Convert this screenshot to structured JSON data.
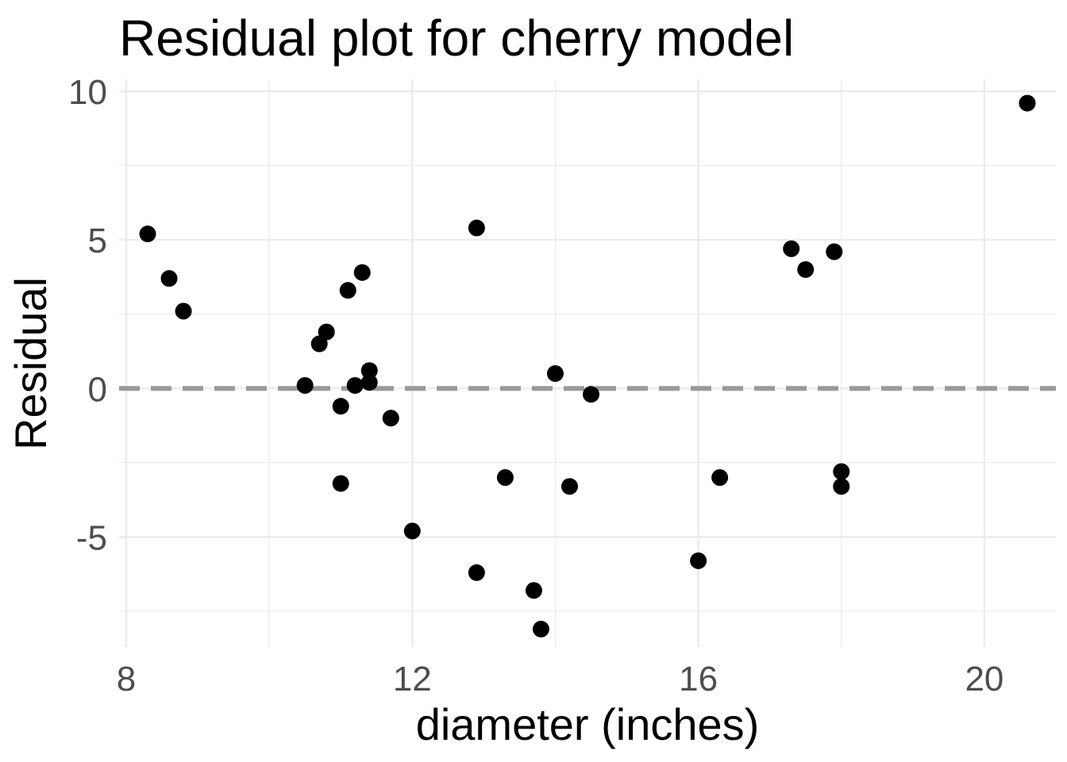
{
  "chart_data": {
    "type": "scatter",
    "title": "Residual plot for cherry model",
    "xlabel": "diameter (inches)",
    "ylabel": "Residual",
    "xlim": [
      7.9,
      21.0
    ],
    "ylim": [
      -8.7,
      10.4
    ],
    "x_ticks": [
      8,
      12,
      16,
      20
    ],
    "x_tick_labels": [
      "8",
      "12",
      "16",
      "20"
    ],
    "x_minor_ticks": [
      10,
      14,
      18
    ],
    "y_ticks": [
      -5,
      0,
      5,
      10
    ],
    "y_tick_labels": [
      "-5",
      "0",
      "5",
      "10"
    ],
    "y_minor_ticks": [
      -7.5,
      -2.5,
      2.5,
      7.5
    ],
    "grid": true,
    "reference_line": {
      "y": 0,
      "style": "dashed",
      "color": "#999999"
    },
    "point_color": "#000000",
    "points": [
      {
        "x": 8.3,
        "y": 5.2
      },
      {
        "x": 8.6,
        "y": 3.7
      },
      {
        "x": 8.8,
        "y": 2.6
      },
      {
        "x": 10.5,
        "y": 0.1
      },
      {
        "x": 10.7,
        "y": 1.5
      },
      {
        "x": 10.8,
        "y": 1.9
      },
      {
        "x": 11.0,
        "y": -0.6
      },
      {
        "x": 11.0,
        "y": -3.2
      },
      {
        "x": 11.1,
        "y": 3.3
      },
      {
        "x": 11.2,
        "y": 0.1
      },
      {
        "x": 11.3,
        "y": 3.9
      },
      {
        "x": 11.4,
        "y": 0.6
      },
      {
        "x": 11.4,
        "y": 0.2
      },
      {
        "x": 11.7,
        "y": -1.0
      },
      {
        "x": 12.0,
        "y": -4.8
      },
      {
        "x": 12.9,
        "y": 5.4
      },
      {
        "x": 12.9,
        "y": -6.2
      },
      {
        "x": 13.3,
        "y": -3.0
      },
      {
        "x": 13.7,
        "y": -6.8
      },
      {
        "x": 13.8,
        "y": -8.1
      },
      {
        "x": 14.0,
        "y": 0.5
      },
      {
        "x": 14.2,
        "y": -3.3
      },
      {
        "x": 14.5,
        "y": -0.2
      },
      {
        "x": 16.0,
        "y": -5.8
      },
      {
        "x": 16.3,
        "y": -3.0
      },
      {
        "x": 17.3,
        "y": 4.7
      },
      {
        "x": 17.5,
        "y": 4.0
      },
      {
        "x": 17.9,
        "y": 4.6
      },
      {
        "x": 18.0,
        "y": -2.8
      },
      {
        "x": 18.0,
        "y": -3.3
      },
      {
        "x": 20.6,
        "y": 9.6
      }
    ]
  }
}
